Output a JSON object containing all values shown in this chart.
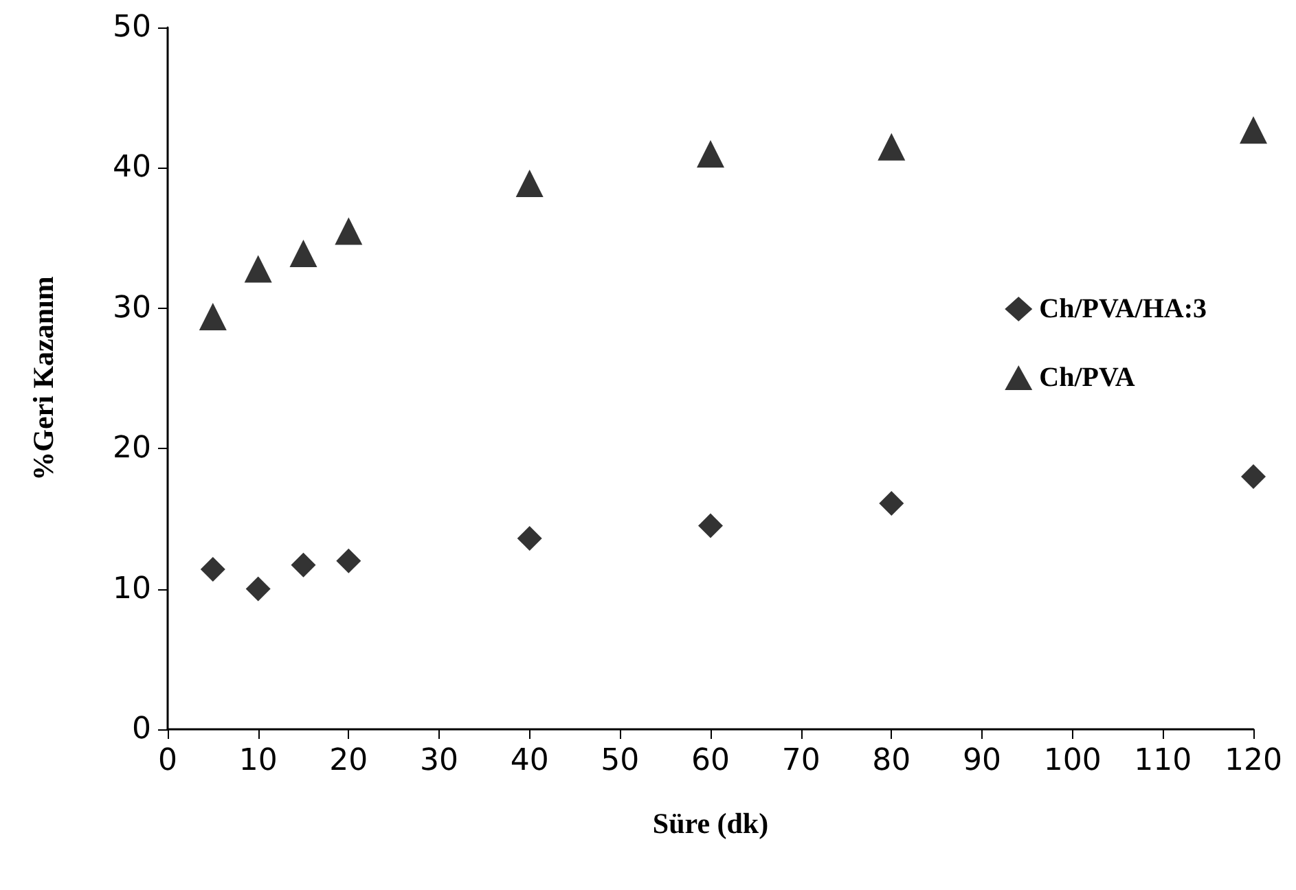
{
  "chart_data": {
    "type": "scatter",
    "xlabel": "Süre (dk)",
    "ylabel": "%Geri Kazanım",
    "x": [
      5,
      10,
      15,
      20,
      40,
      60,
      80,
      120
    ],
    "series": [
      {
        "name": "Ch/PVA/HA:3",
        "color": "#000000",
        "marker": "diamond",
        "values": [
          11.4,
          10.0,
          11.7,
          12.0,
          13.6,
          14.5,
          16.1,
          18.0
        ]
      },
      {
        "name": "Ch/PVA",
        "color": "#000000",
        "marker": "triangle",
        "values": [
          29.4,
          32.8,
          33.9,
          35.5,
          38.9,
          41.0,
          41.5,
          42.7
        ]
      }
    ],
    "xlim": [
      0,
      120
    ],
    "xticks": [
      0,
      10,
      20,
      30,
      40,
      50,
      60,
      70,
      80,
      90,
      100,
      110,
      120
    ],
    "ylim": [
      0,
      50
    ],
    "yticks": [
      0,
      10,
      20,
      30,
      40,
      50
    ],
    "grid": false,
    "legend": "right"
  }
}
